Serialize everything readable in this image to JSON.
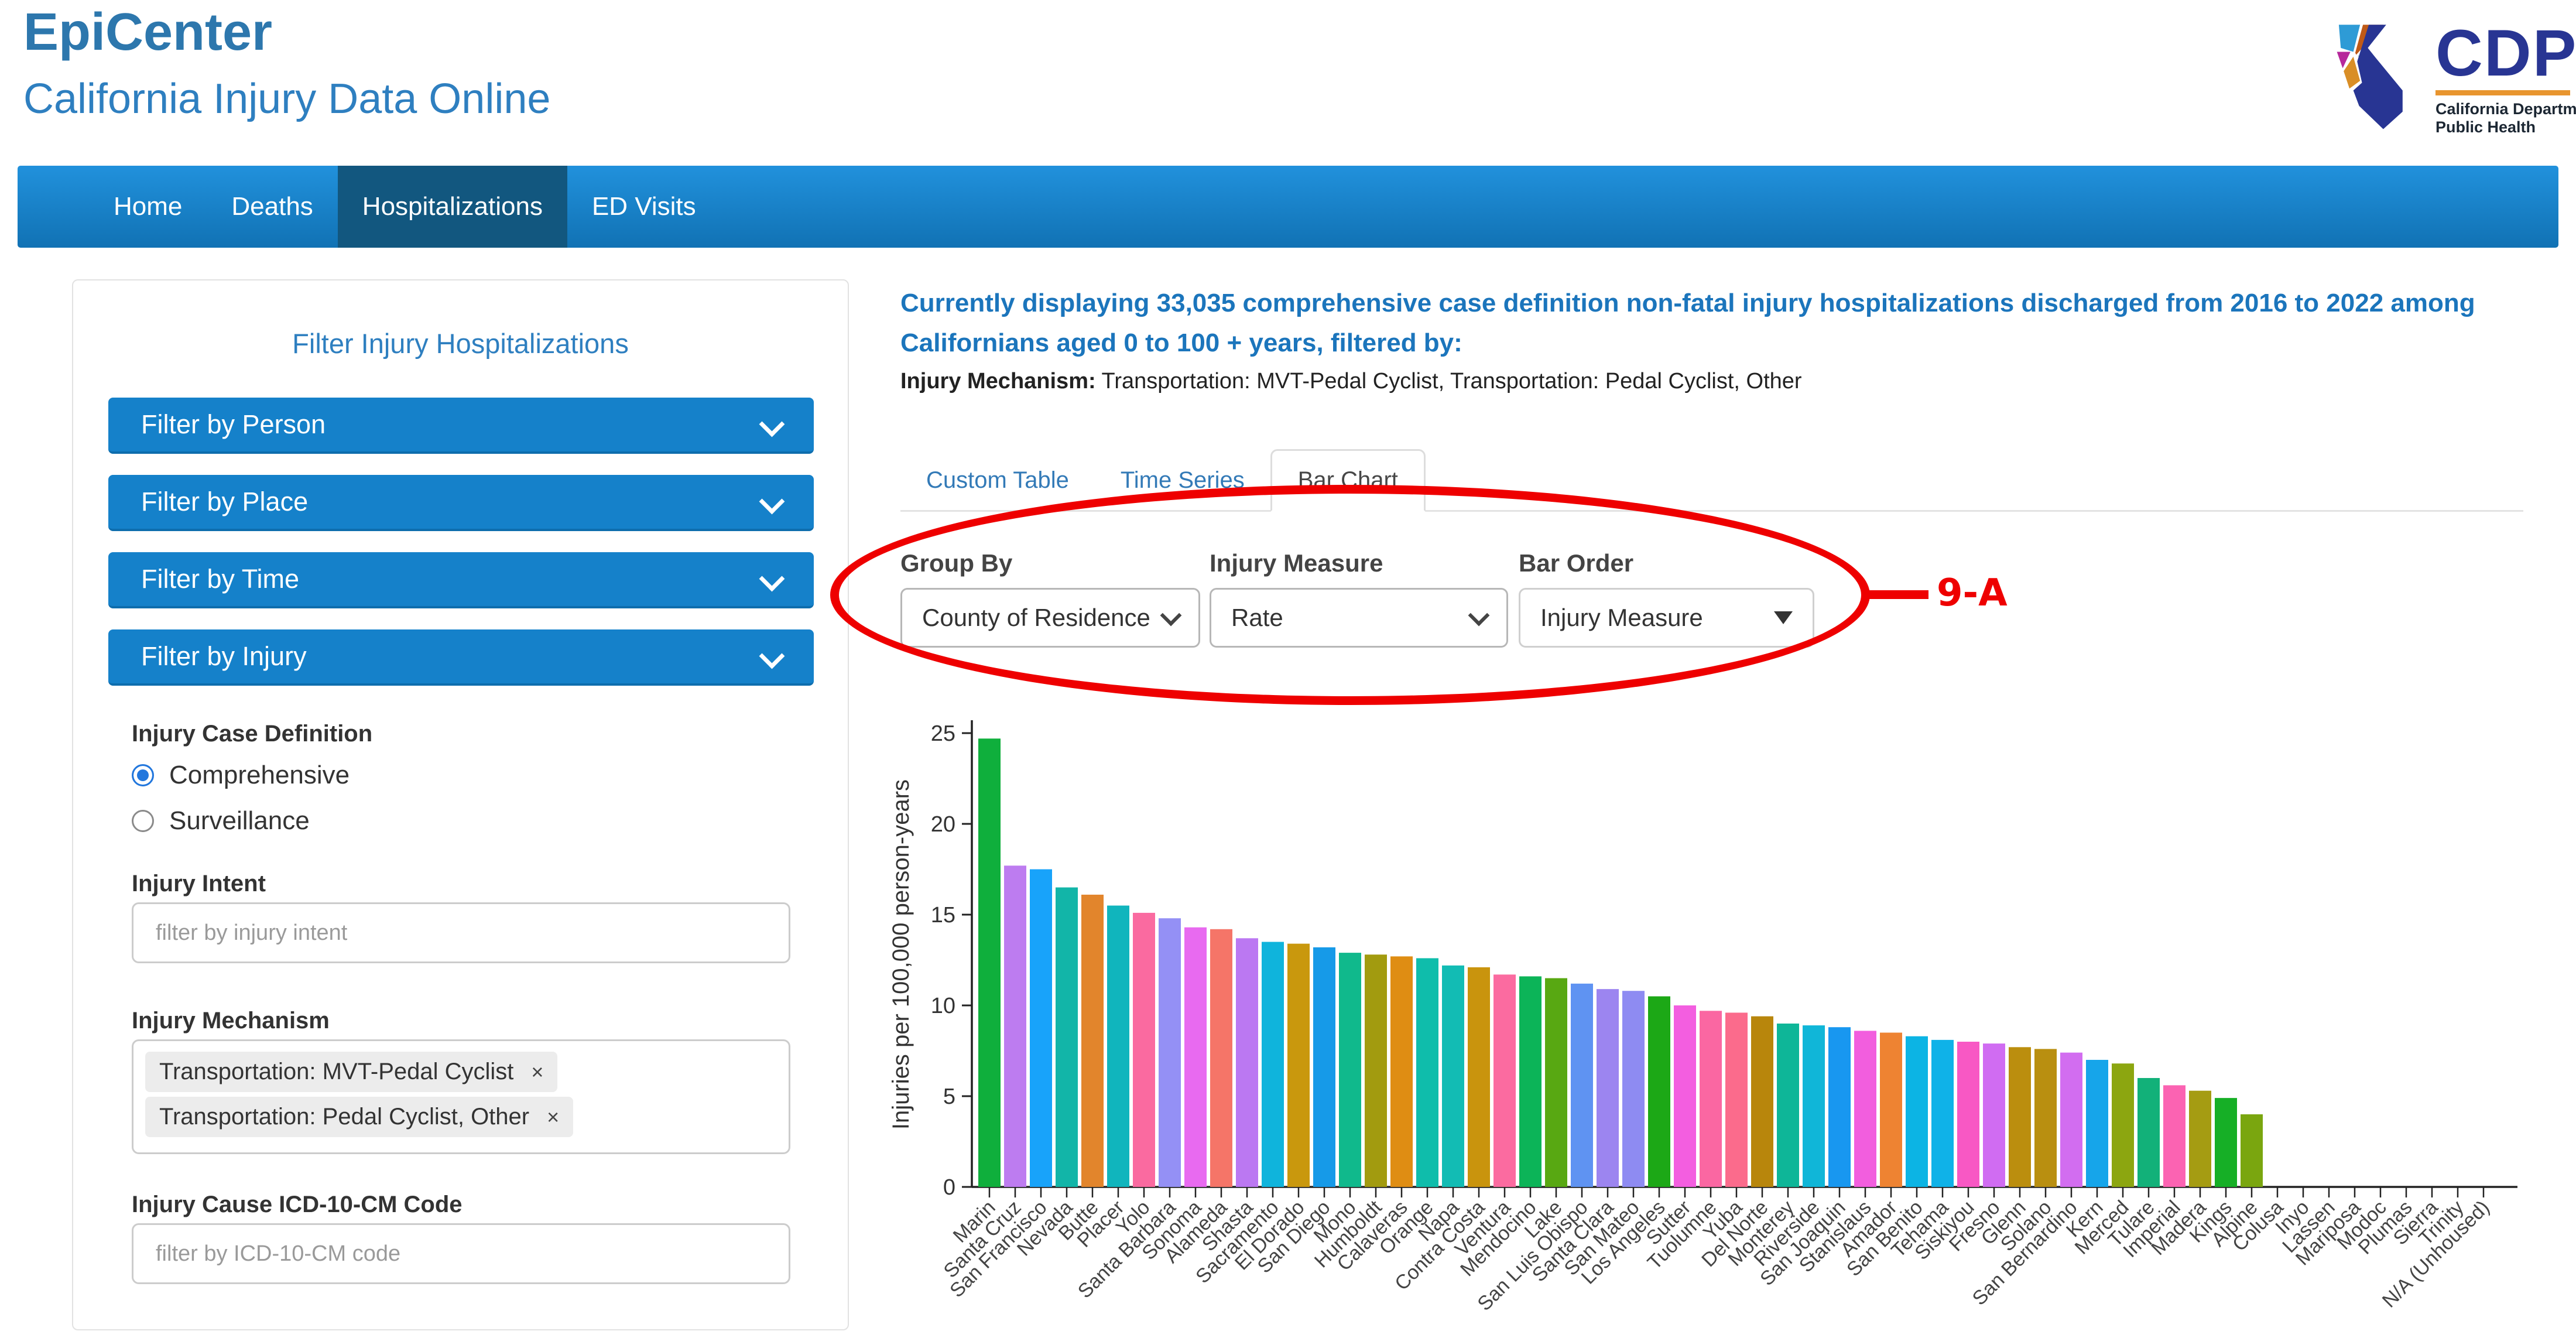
{
  "header": {
    "app_title": "EpiCenter",
    "subtitle": "California Injury Data Online",
    "logo": {
      "word": "CDPH",
      "caption_line1": "California Department of",
      "caption_line2": "Public Health"
    }
  },
  "nav": {
    "items": [
      {
        "label": "Home",
        "active": false
      },
      {
        "label": "Deaths",
        "active": false
      },
      {
        "label": "Hospitalizations",
        "active": true
      },
      {
        "label": "ED Visits",
        "active": false
      }
    ]
  },
  "sidebar": {
    "title": "Filter Injury Hospitalizations",
    "accordions": [
      {
        "label": "Filter by Person"
      },
      {
        "label": "Filter by Place"
      },
      {
        "label": "Filter by Time"
      },
      {
        "label": "Filter by Injury"
      }
    ],
    "case_definition": {
      "label": "Injury Case Definition",
      "options": [
        {
          "label": "Comprehensive",
          "selected": true
        },
        {
          "label": "Surveillance",
          "selected": false
        }
      ]
    },
    "intent": {
      "label": "Injury Intent",
      "placeholder": "filter by injury intent"
    },
    "mechanism": {
      "label": "Injury Mechanism",
      "remove_symbol": "×",
      "tags": [
        {
          "label": "Transportation: MVT-Pedal Cyclist"
        },
        {
          "label": "Transportation: Pedal Cyclist, Other"
        }
      ]
    },
    "icd": {
      "label": "Injury Cause ICD-10-CM Code",
      "placeholder": "filter by ICD-10-CM code"
    }
  },
  "main": {
    "summary": "Currently displaying 33,035 comprehensive case definition non-fatal injury hospitalizations discharged from 2016 to 2022 among Californians aged 0 to 100 + years, filtered by:",
    "filter_label": "Injury Mechanism:",
    "filter_value": " Transportation: MVT-Pedal Cyclist, Transportation: Pedal Cyclist, Other",
    "tabs": [
      {
        "label": "Custom Table",
        "active": false
      },
      {
        "label": "Time Series",
        "active": false
      },
      {
        "label": "Bar Chart",
        "active": true
      }
    ],
    "controls": {
      "group_by": {
        "label": "Group By",
        "value": "County of Residence"
      },
      "injury_measure": {
        "label": "Injury Measure",
        "value": "Rate"
      },
      "bar_order": {
        "label": "Bar Order",
        "value": "Injury Measure"
      }
    },
    "annotation": {
      "label": "9-A",
      "color": "#ee0000"
    }
  },
  "chart_data": {
    "type": "bar",
    "title": "",
    "xlabel": "",
    "ylabel": "Injuries per 100,000 person-years",
    "ylim": [
      0,
      25
    ],
    "y_ticks": [
      0,
      5,
      10,
      15,
      20,
      25
    ],
    "grid": false,
    "legend": "none",
    "categories": [
      "Marin",
      "Santa Cruz",
      "San Francisco",
      "Nevada",
      "Butte",
      "Placer",
      "Yolo",
      "Santa Barbara",
      "Sonoma",
      "Alameda",
      "Shasta",
      "Sacramento",
      "El Dorado",
      "San Diego",
      "Mono",
      "Humboldt",
      "Calaveras",
      "Orange",
      "Napa",
      "Contra Costa",
      "Ventura",
      "Mendocino",
      "Lake",
      "San Luis Obispo",
      "Santa Clara",
      "San Mateo",
      "Los Angeles",
      "Sutter",
      "Tuolumne",
      "Yuba",
      "Del Norte",
      "Monterey",
      "Riverside",
      "San Joaquin",
      "Stanislaus",
      "Amador",
      "San Benito",
      "Tehama",
      "Siskiyou",
      "Fresno",
      "Glenn",
      "Solano",
      "San Bernardino",
      "Kern",
      "Merced",
      "Tulare",
      "Imperial",
      "Madera",
      "Kings",
      "Alpine",
      "Colusa",
      "Inyo",
      "Lassen",
      "Mariposa",
      "Modoc",
      "Plumas",
      "Sierra",
      "Trinity",
      "N/A (Unhoused)"
    ],
    "values": [
      24.7,
      17.7,
      17.5,
      16.5,
      16.1,
      15.5,
      15.1,
      14.8,
      14.3,
      14.2,
      13.7,
      13.5,
      13.4,
      13.2,
      12.9,
      12.8,
      12.7,
      12.6,
      12.2,
      12.1,
      11.7,
      11.6,
      11.5,
      11.2,
      10.9,
      10.8,
      10.5,
      10.0,
      9.7,
      9.6,
      9.4,
      9.0,
      8.9,
      8.8,
      8.6,
      8.5,
      8.3,
      8.1,
      8.0,
      7.9,
      7.7,
      7.6,
      7.4,
      7.0,
      6.8,
      6.0,
      5.6,
      5.3,
      4.9,
      4.0,
      0,
      0,
      0,
      0,
      0,
      0,
      0,
      0,
      0
    ],
    "colors": [
      "#0faf3c",
      "#bd7cf0",
      "#18a3fa",
      "#12b5a8",
      "#e2852c",
      "#10b5bd",
      "#fa6aa0",
      "#9490f5",
      "#e86af0",
      "#f57568",
      "#bb78f2",
      "#0fb4dc",
      "#c9980d",
      "#169ae8",
      "#10b98c",
      "#a29b0f",
      "#df8d13",
      "#0fbdab",
      "#12bcb4",
      "#c9940d",
      "#fb6ba0",
      "#0cb458",
      "#58a812",
      "#5f93f2",
      "#9c85f0",
      "#8e8bf2",
      "#1ca816",
      "#f35ee0",
      "#fa67a2",
      "#fb6b8c",
      "#b8860c",
      "#0eb698",
      "#10b6d8",
      "#1897f0",
      "#f25ede",
      "#ee8332",
      "#0cb4e4",
      "#0fb2e8",
      "#f858c4",
      "#d06cf2",
      "#bb8e0e",
      "#b98f10",
      "#d26df0",
      "#16a5ea",
      "#8ca610",
      "#12b179",
      "#fb63b2",
      "#a59c12",
      "#16af26",
      "#7aa60f"
    ],
    "axis_color": "#222222",
    "tick_label_color": "#444444"
  }
}
